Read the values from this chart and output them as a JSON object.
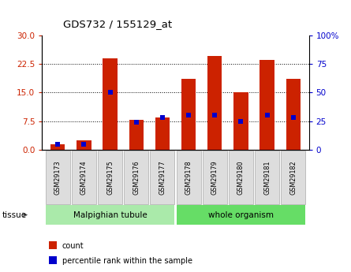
{
  "title": "GDS732 / 155129_at",
  "samples": [
    "GSM29173",
    "GSM29174",
    "GSM29175",
    "GSM29176",
    "GSM29177",
    "GSM29178",
    "GSM29179",
    "GSM29180",
    "GSM29181",
    "GSM29182"
  ],
  "counts": [
    1.5,
    2.5,
    24.0,
    7.8,
    8.5,
    18.5,
    24.5,
    15.0,
    23.5,
    18.5
  ],
  "percentile_ranks": [
    5,
    5,
    50,
    24,
    28,
    30,
    30,
    25,
    30,
    28
  ],
  "bar_color": "#cc2200",
  "pct_color": "#0000cc",
  "tissue_groups": [
    {
      "label": "Malpighian tubule",
      "start": 0,
      "end": 5,
      "color": "#aaeaaa"
    },
    {
      "label": "whole organism",
      "start": 5,
      "end": 10,
      "color": "#66dd66"
    }
  ],
  "ylim_left": [
    0,
    30
  ],
  "ylim_right": [
    0,
    100
  ],
  "yticks_left": [
    0,
    7.5,
    15,
    22.5,
    30
  ],
  "yticks_right": [
    0,
    25,
    50,
    75,
    100
  ],
  "ytick_labels_right": [
    "0",
    "25",
    "50",
    "75",
    "100%"
  ],
  "bar_width": 0.55,
  "bg_color": "#ffffff",
  "tissue_label": "tissue",
  "legend_items": [
    {
      "label": "count",
      "color": "#cc2200"
    },
    {
      "label": "percentile rank within the sample",
      "color": "#0000cc"
    }
  ]
}
